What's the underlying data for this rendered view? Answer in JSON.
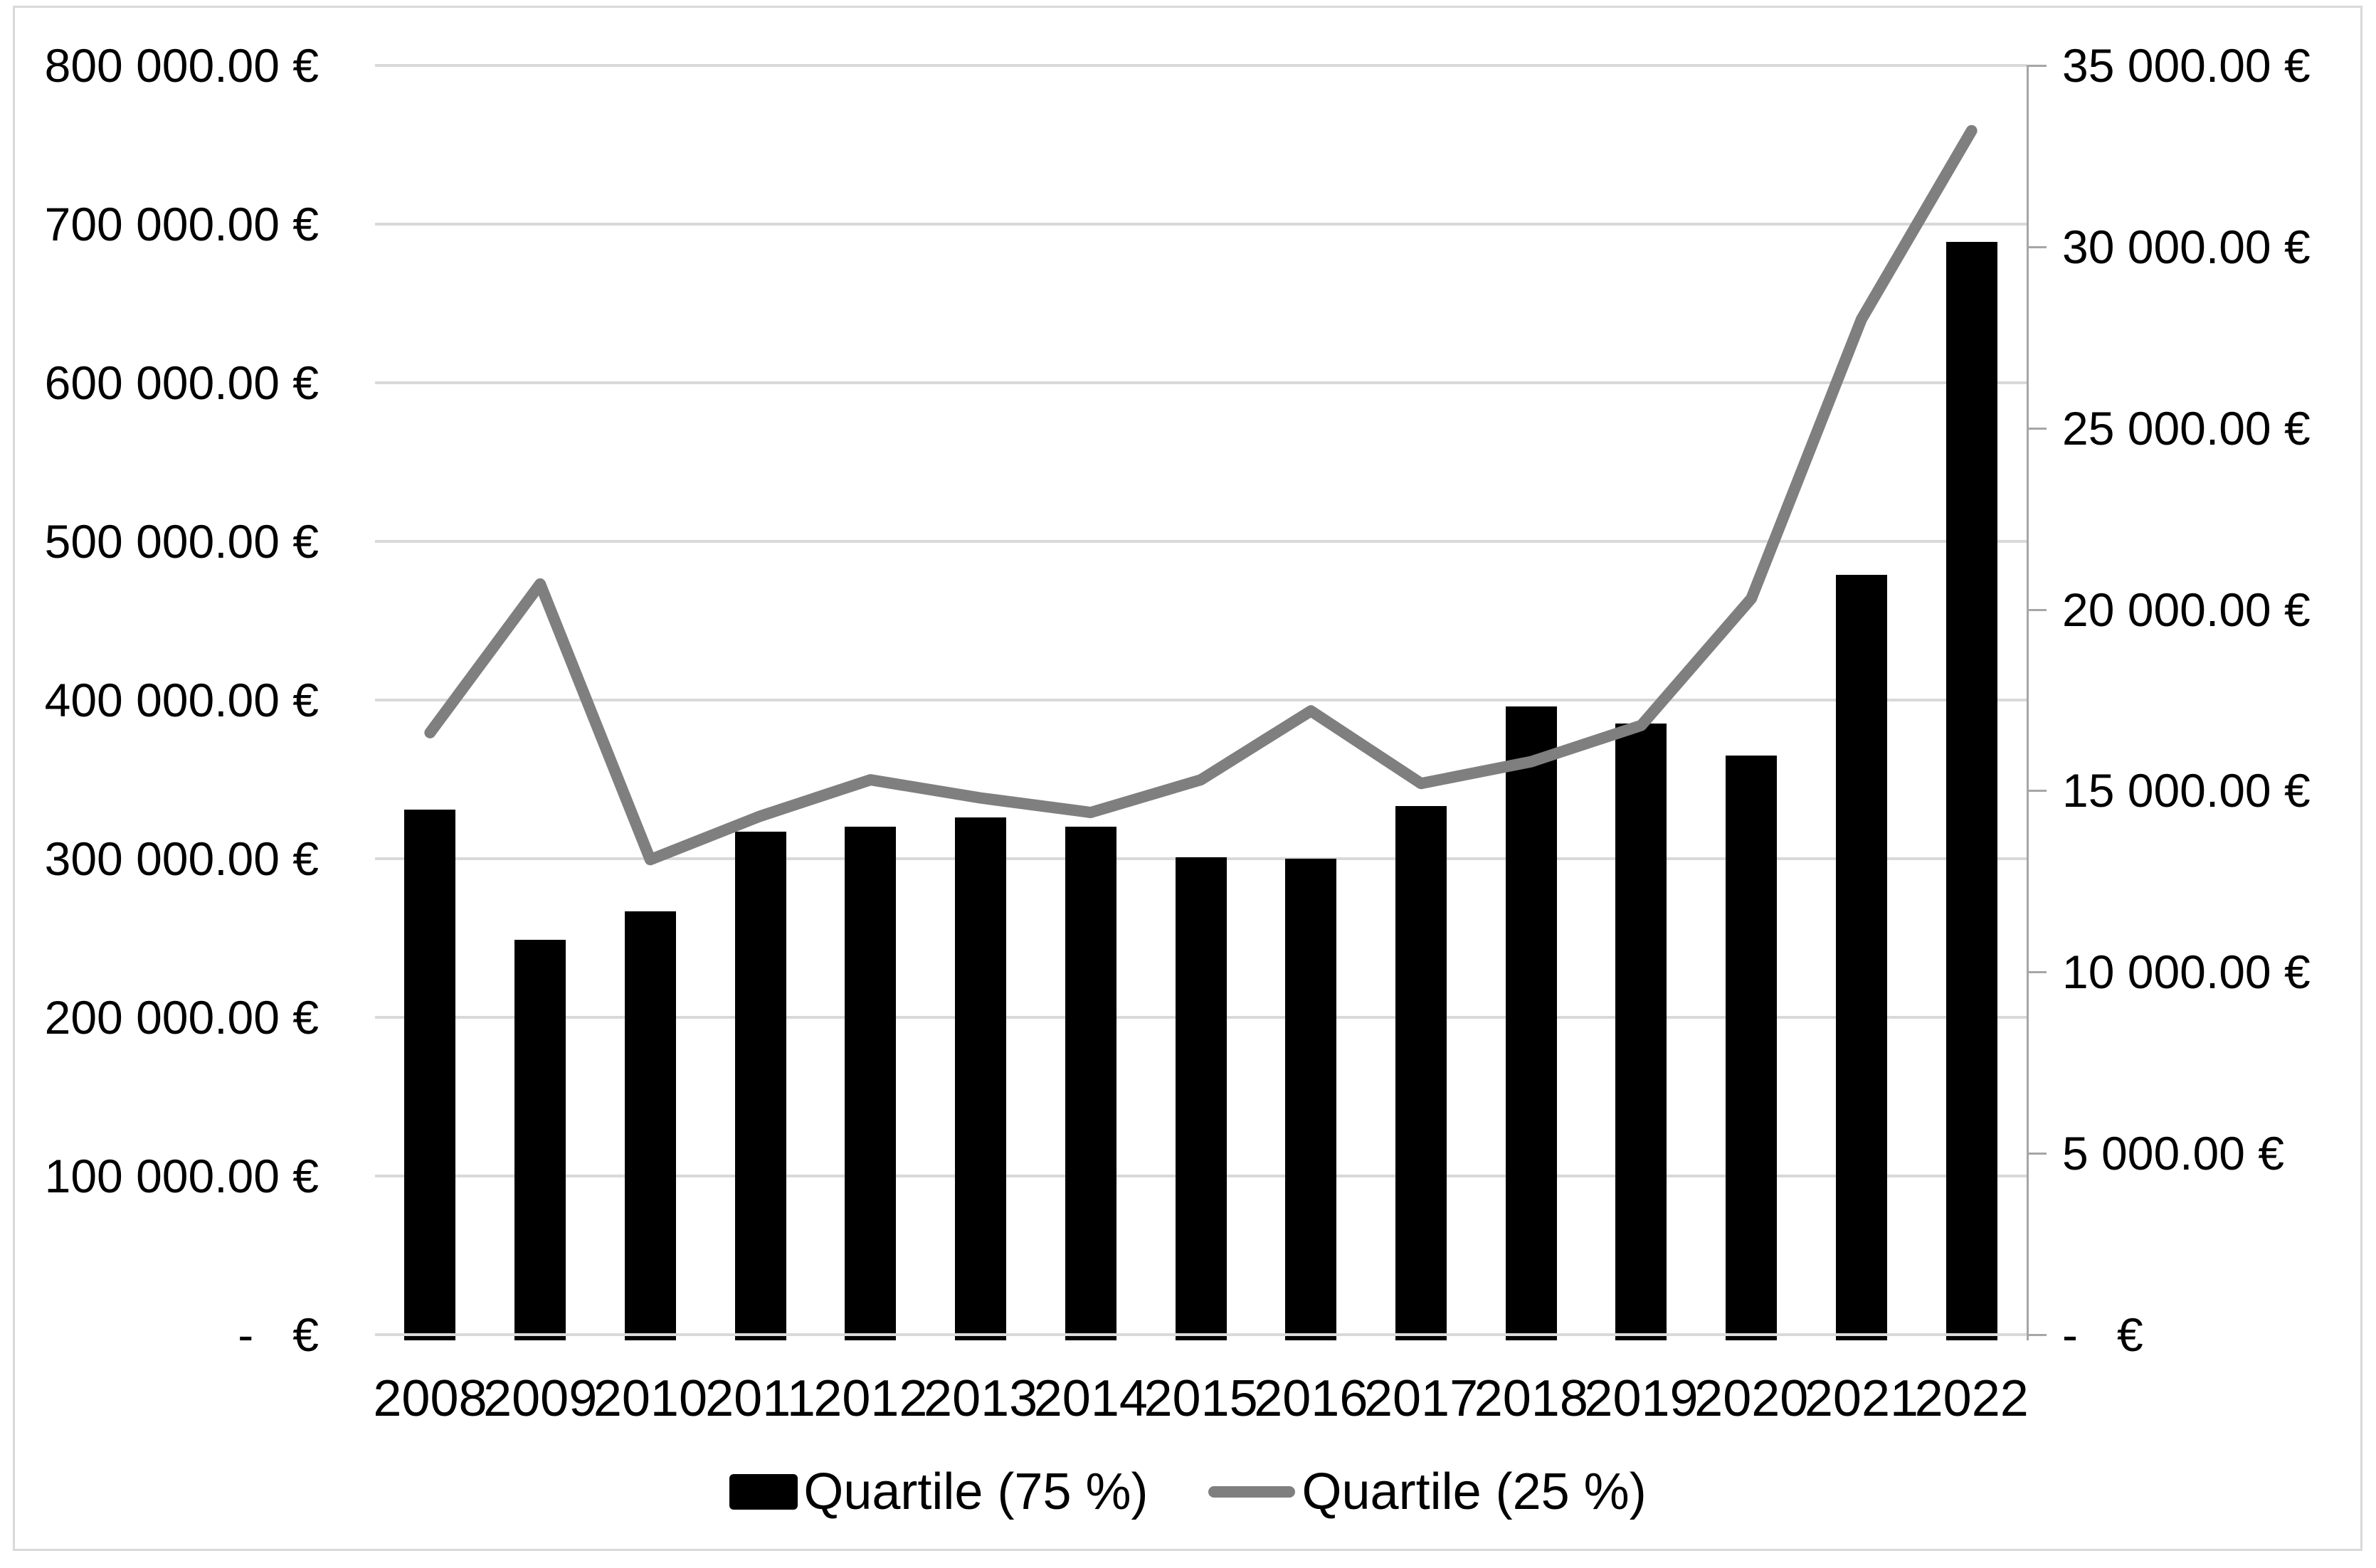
{
  "chart_data": {
    "type": "bar",
    "subtype": "combo-bar-line-dual-axis",
    "title": "",
    "categories": [
      "2008",
      "2009",
      "2010",
      "2011",
      "2012",
      "2013",
      "2014",
      "2015",
      "2016",
      "2017",
      "2018",
      "2019",
      "2020",
      "2021",
      "2022"
    ],
    "series": [
      {
        "name": "Quartile (75 %)",
        "type": "bar",
        "axis": "left",
        "color": "#000000",
        "values": [
          331000,
          249000,
          267000,
          317000,
          320000,
          326000,
          320000,
          301000,
          300000,
          333000,
          396000,
          385000,
          365000,
          479000,
          689000
        ]
      },
      {
        "name": "Quartile (25 %)",
        "type": "line",
        "axis": "right",
        "color": "#7f7f7f",
        "values": [
          16600,
          20700,
          13100,
          14300,
          15300,
          14800,
          14400,
          15300,
          17200,
          15200,
          15800,
          16800,
          20300,
          28000,
          33200
        ]
      }
    ],
    "left_axis": {
      "min": 0,
      "max": 800000,
      "step": 100000,
      "labels": [
        "800 000.00 €",
        "700 000.00 €",
        "600 000.00 €",
        "500 000.00 €",
        "400 000.00 €",
        "300 000.00 €",
        "200 000.00 €",
        "100 000.00 €",
        "-   €"
      ]
    },
    "right_axis": {
      "min": 0,
      "max": 35000,
      "step": 5000,
      "labels": [
        "35 000.00 €",
        "30 000.00 €",
        "25 000.00 €",
        "20 000.00 €",
        "15 000.00 €",
        "10 000.00 €",
        "5 000.00 €",
        "-   €"
      ]
    },
    "grid": true,
    "legend_position": "bottom",
    "colors": {
      "bar": "#000000",
      "line": "#7f7f7f",
      "gridline": "#d9d9d9",
      "secondary_axis": "#a6a6a6",
      "border": "#d9d9d9"
    }
  }
}
